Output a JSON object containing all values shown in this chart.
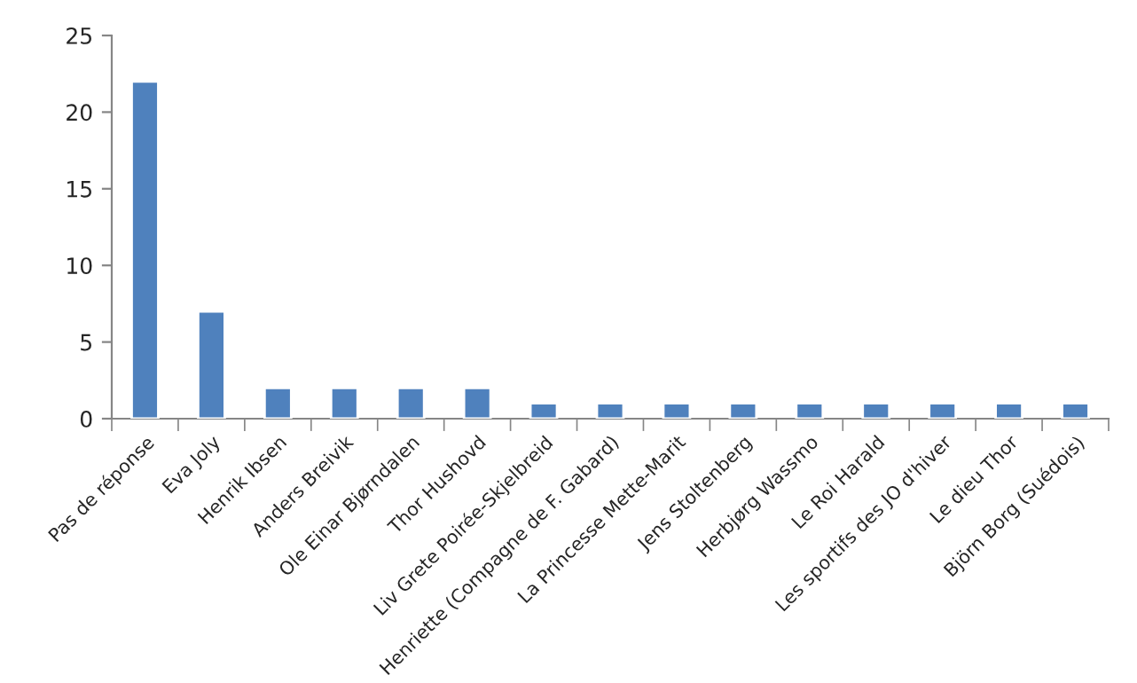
{
  "chart_data": {
    "type": "bar",
    "categories": [
      "Pas de réponse",
      "Eva Joly",
      "Henrik Ibsen",
      "Anders Breivik",
      "Ole Einar Bjørndalen",
      "Thor Hushovd",
      "Liv Grete Poirée-Skjelbreid",
      "Henriette (Compagne de F. Gabard)",
      "La Princesse Mette-Marit",
      "Jens Stoltenberg",
      "Herbjørg Wassmo",
      "Le Roi Harald",
      "Les sportifs des JO d'hiver",
      "Le dieu Thor",
      "Björn Borg (Suédois)"
    ],
    "values": [
      22,
      7,
      2,
      2,
      2,
      2,
      1,
      1,
      1,
      1,
      1,
      1,
      1,
      1,
      1
    ],
    "color": "#4f81bd",
    "ylim": [
      0,
      25
    ],
    "yticks": [
      0,
      5,
      10,
      15,
      20,
      25
    ],
    "grid": false,
    "legend": false
  }
}
